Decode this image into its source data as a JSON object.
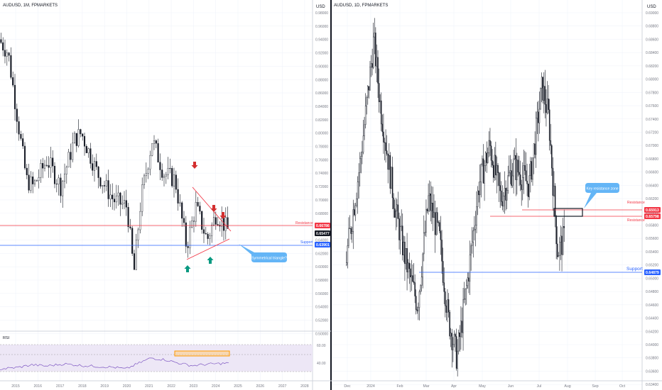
{
  "colors": {
    "up": "#ffffff",
    "down": "#131722",
    "wick": "#131722",
    "resistance": "#f23645",
    "support": "#2962ff",
    "price_badge": "#131722",
    "callout": "#64b5f6",
    "arrow_down": "#d32f2f",
    "arrow_up": "#089981",
    "rsi_line": "#7e57c2",
    "rsi_band": "#ede7f6",
    "rsi_box": "#ff9800",
    "grid": "#f0f3fa",
    "text": "#131722",
    "axis_text": "#787b86"
  },
  "left_panel": {
    "symbol": "AUDUSD, 1M, FPMARKETS",
    "currency": "USD",
    "price_ticks": [
      "0.98000",
      "0.96000",
      "0.94000",
      "0.92000",
      "0.90000",
      "0.88000",
      "0.86000",
      "0.84000",
      "0.82000",
      "0.80000",
      "0.78000",
      "0.76000",
      "0.74000",
      "0.72000",
      "0.70000",
      "0.68000",
      "0.66000",
      "0.64000",
      "0.62000",
      "0.60000",
      "0.58000",
      "0.56000",
      "0.54000",
      "0.52000",
      "0.50000"
    ],
    "year_ticks": [
      "2015",
      "2016",
      "2017",
      "2018",
      "2019",
      "2020",
      "2021",
      "2022",
      "2023",
      "2024",
      "2025",
      "2026",
      "2027",
      "2028"
    ],
    "resistance_label": "Resistance",
    "resistance_price": "0.66786",
    "current_price": "0.65477",
    "support_label": "Support",
    "support_price": "0.63901",
    "callout": "Symmetrical triangle?",
    "rsi_title": "RSI",
    "rsi_ticks": [
      "60.00",
      "40.00"
    ]
  },
  "right_panel": {
    "symbol": "AUDUSD, 1D, FPMARKETS",
    "currency": "USD",
    "price_ticks": [
      "0.69000",
      "0.68800",
      "0.68600",
      "0.68400",
      "0.68200",
      "0.68000",
      "0.67800",
      "0.67600",
      "0.67400",
      "0.67200",
      "0.67000",
      "0.66800",
      "0.66600",
      "0.66400",
      "0.66200",
      "0.66000",
      "0.65800",
      "0.65600",
      "0.65400",
      "0.65200",
      "0.65000",
      "0.64800",
      "0.64600",
      "0.64400",
      "0.64200",
      "0.64000",
      "0.63800",
      "0.63600",
      "0.63400",
      "0.63200"
    ],
    "month_ticks": [
      "Dec",
      "2024",
      "Feb",
      "Mar",
      "Apr",
      "May",
      "Jun",
      "Jul",
      "Aug",
      "Sep",
      "Oct"
    ],
    "resistance_label_1": "Resistance",
    "resistance_price_1": "0.65913",
    "resistance_label_2": "Resistance",
    "resistance_price_2": "0.65798",
    "support_label": "Support",
    "support_price": "0.64879",
    "callout": "Key resistance zone"
  },
  "chart_data": [
    {
      "type": "candlestick",
      "title": "AUDUSD, 1M, FPMARKETS",
      "x_range": [
        "2015",
        "2028"
      ],
      "ylim": [
        0.5,
        0.98
      ],
      "grid": true,
      "key_points": [
        {
          "x": "2014-12",
          "y": 0.94
        },
        {
          "x": "2015-06",
          "y": 0.77
        },
        {
          "x": "2016-01",
          "y": 0.7
        },
        {
          "x": "2016-07",
          "y": 0.76
        },
        {
          "x": "2017-09",
          "y": 0.81
        },
        {
          "x": "2018-01",
          "y": 0.8
        },
        {
          "x": "2018-12",
          "y": 0.7
        },
        {
          "x": "2019-12",
          "y": 0.7
        },
        {
          "x": "2020-03",
          "y": 0.55
        },
        {
          "x": "2021-02",
          "y": 0.8
        },
        {
          "x": "2021-12",
          "y": 0.71
        },
        {
          "x": "2022-04",
          "y": 0.76
        },
        {
          "x": "2022-10",
          "y": 0.62
        },
        {
          "x": "2023-02",
          "y": 0.71
        },
        {
          "x": "2023-10",
          "y": 0.63
        },
        {
          "x": "2023-12",
          "y": 0.69
        },
        {
          "x": "2024-06",
          "y": 0.665
        }
      ],
      "levels": [
        {
          "label": "Resistance",
          "value": 0.66786
        },
        {
          "label": "Support",
          "value": 0.63901
        }
      ],
      "annotations": [
        "Symmetrical triangle?"
      ]
    },
    {
      "type": "line",
      "title": "RSI",
      "ylim": [
        20,
        80
      ],
      "key_points": [
        {
          "x": "2015",
          "y": 38
        },
        {
          "x": "2016",
          "y": 42
        },
        {
          "x": "2017",
          "y": 47
        },
        {
          "x": "2018",
          "y": 44
        },
        {
          "x": "2019",
          "y": 42
        },
        {
          "x": "2020",
          "y": 36
        },
        {
          "x": "2021",
          "y": 64
        },
        {
          "x": "2022",
          "y": 50
        },
        {
          "x": "2023",
          "y": 45
        },
        {
          "x": "2024",
          "y": 47
        },
        {
          "x": "2024-06",
          "y": 50
        }
      ]
    },
    {
      "type": "candlestick",
      "title": "AUDUSD, 1D, FPMARKETS",
      "x_range": [
        "Dec",
        "Oct"
      ],
      "ylim": [
        0.632,
        0.69
      ],
      "grid": true,
      "key_points": [
        {
          "x": "2023-11",
          "y": 0.652
        },
        {
          "x": "2023-12",
          "y": 0.67
        },
        {
          "x": "2023-12-28",
          "y": 0.686
        },
        {
          "x": "2024-02",
          "y": 0.65
        },
        {
          "x": "2024-03",
          "y": 0.663
        },
        {
          "x": "2024-04-19",
          "y": 0.636
        },
        {
          "x": "2024-05",
          "y": 0.668
        },
        {
          "x": "2024-06",
          "y": 0.66
        },
        {
          "x": "2024-07-08",
          "y": 0.6798
        },
        {
          "x": "2024-07-31",
          "y": 0.6513
        },
        {
          "x": "2024-08-05",
          "y": 0.657
        }
      ],
      "levels": [
        {
          "label": "Resistance",
          "value": 0.65913
        },
        {
          "label": "Resistance",
          "value": 0.65798
        },
        {
          "label": "Support",
          "value": 0.64879
        }
      ],
      "annotations": [
        "Key resistance zone"
      ]
    }
  ]
}
